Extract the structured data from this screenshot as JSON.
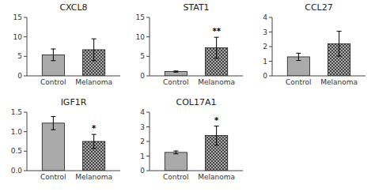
{
  "chart_data": [
    {
      "type": "bar",
      "title": "CXCL8",
      "categories": [
        "Control",
        "Melanoma"
      ],
      "values": [
        5.4,
        6.7
      ],
      "errors": [
        1.5,
        2.8
      ],
      "colors": [
        "#aaaaaa",
        "#aaaaaa"
      ],
      "ylim": [
        0,
        15
      ],
      "yticks": [
        0,
        5,
        10,
        15
      ],
      "grid": false
    },
    {
      "type": "bar",
      "title": "STAT1",
      "categories": [
        "Control",
        "Melanoma"
      ],
      "values": [
        1.1,
        7.2
      ],
      "errors": [
        0.15,
        2.7
      ],
      "colors": [
        "#aaaaaa",
        "#aaaaaa"
      ],
      "ylim": [
        0,
        15
      ],
      "yticks": [
        0,
        5,
        10,
        15
      ],
      "grid": false,
      "annotations": [
        {
          "text": "**",
          "category": "Melanoma"
        }
      ]
    },
    {
      "type": "bar",
      "title": "CCL27",
      "categories": [
        "Control",
        "Melanoma"
      ],
      "values": [
        1.3,
        2.2
      ],
      "errors": [
        0.25,
        0.85
      ],
      "colors": [
        "#aaaaaa",
        "#aaaaaa"
      ],
      "ylim": [
        0,
        4
      ],
      "yticks": [
        0,
        1,
        2,
        3,
        4
      ],
      "grid": false
    },
    {
      "type": "bar",
      "title": "IGF1R",
      "categories": [
        "Control",
        "Melanoma"
      ],
      "values": [
        1.22,
        0.75
      ],
      "errors": [
        0.17,
        0.18
      ],
      "colors": [
        "#aaaaaa",
        "#aaaaaa"
      ],
      "ylim": [
        0,
        1.5
      ],
      "yticks": [
        {
          "value": 0,
          "label": "0.0"
        },
        0.5,
        {
          "value": 1,
          "label": "1.0"
        },
        1.5
      ],
      "grid": false,
      "annotations": [
        {
          "text": "*",
          "category": "Melanoma"
        }
      ]
    },
    {
      "type": "bar",
      "title": "COL17A1",
      "categories": [
        "Control",
        "Melanoma"
      ],
      "values": [
        1.25,
        2.4
      ],
      "errors": [
        0.1,
        0.65
      ],
      "colors": [
        "#aaaaaa",
        "#aaaaaa"
      ],
      "ylim": [
        0,
        4
      ],
      "yticks": [
        0,
        1,
        2,
        3,
        4
      ],
      "grid": false,
      "annotations": [
        {
          "text": "*",
          "category": "Melanoma"
        }
      ]
    }
  ]
}
